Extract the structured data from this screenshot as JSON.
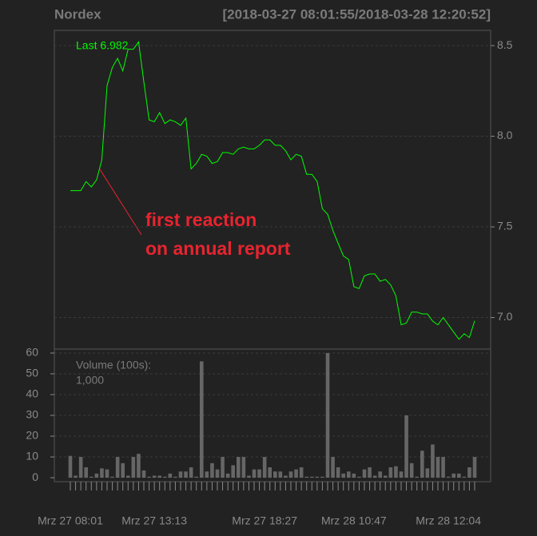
{
  "chart_data": [
    {
      "type": "line",
      "title": "Nordex",
      "subtitle": "[2018-03-27 08:01:55/2018-03-28 12:20:52]",
      "categories": [
        "Mrz 27 08:01",
        null,
        null,
        null,
        null,
        null,
        null,
        null,
        null,
        null,
        null,
        null,
        null,
        null,
        null,
        null,
        "Mrz 27 13:13",
        null,
        null,
        null,
        null,
        null,
        null,
        null,
        null,
        null,
        null,
        null,
        null,
        null,
        null,
        null,
        null,
        null,
        null,
        null,
        null,
        "Mrz 27 18:27",
        null,
        null,
        null,
        null,
        null,
        null,
        null,
        null,
        null,
        null,
        null,
        null,
        null,
        null,
        null,
        null,
        "Mrz 28 10:47",
        null,
        null,
        null,
        null,
        null,
        null,
        null,
        null,
        null,
        null,
        null,
        null,
        null,
        null,
        null,
        null,
        null,
        "Mrz 28 12:04",
        null,
        null,
        null,
        null,
        null
      ],
      "series": [
        {
          "name": "Last",
          "color": "#00ff00",
          "values": [
            7.7,
            7.7,
            7.7,
            7.75,
            7.72,
            7.76,
            7.87,
            8.28,
            8.38,
            8.43,
            8.36,
            8.48,
            8.48,
            8.52,
            8.3,
            8.09,
            8.08,
            8.13,
            8.07,
            8.09,
            8.08,
            8.06,
            8.1,
            7.82,
            7.85,
            7.9,
            7.89,
            7.85,
            7.86,
            7.91,
            7.91,
            7.9,
            7.93,
            7.94,
            7.93,
            7.93,
            7.95,
            7.98,
            7.98,
            7.95,
            7.95,
            7.92,
            7.87,
            7.9,
            7.89,
            7.79,
            7.79,
            7.75,
            7.6,
            7.57,
            7.48,
            7.41,
            7.34,
            7.32,
            7.17,
            7.16,
            7.23,
            7.24,
            7.24,
            7.2,
            7.21,
            7.18,
            7.12,
            6.96,
            6.97,
            7.03,
            7.03,
            7.02,
            7.02,
            6.98,
            6.96,
            7.0,
            6.96,
            6.92,
            6.88,
            6.91,
            6.89,
            6.982
          ]
        }
      ],
      "last_label": "Last 6.982",
      "ylim": [
        6.826,
        8.584
      ],
      "yticks": [
        {
          "value": 7,
          "label": "7.0"
        },
        7.5,
        {
          "value": 8,
          "label": "8.0"
        },
        8.5
      ],
      "grid": true,
      "annotation": [
        "first reaction",
        "on annual report"
      ],
      "annotation_color": "#e8242f"
    },
    {
      "type": "bar",
      "label": "Volume (100s):",
      "last_label": "1,000",
      "color": "#666666",
      "values": [
        10.5,
        1,
        10,
        5,
        0.5,
        2,
        4.5,
        4,
        0.5,
        10,
        7,
        1,
        10,
        11.5,
        3.5,
        0.5,
        1,
        1,
        0.5,
        2,
        0.5,
        3,
        3,
        5,
        0.5,
        56,
        3,
        7,
        4,
        10,
        2,
        6,
        10,
        10,
        1,
        4,
        4,
        10,
        5,
        3,
        3,
        1,
        3,
        4,
        5,
        0.5,
        0.5,
        0.5,
        0.5,
        60,
        10,
        5,
        2,
        3,
        2,
        0.5,
        4,
        5,
        1,
        3,
        1,
        5,
        5.5,
        3,
        30,
        7,
        0.5,
        13,
        4.5,
        16,
        10,
        10,
        0.5,
        2,
        2,
        0.5,
        5,
        10
      ],
      "ylim": [
        -1.9,
        61.9
      ],
      "yticks": [
        0,
        10,
        20,
        30,
        40,
        50,
        60
      ],
      "grid": true
    }
  ]
}
